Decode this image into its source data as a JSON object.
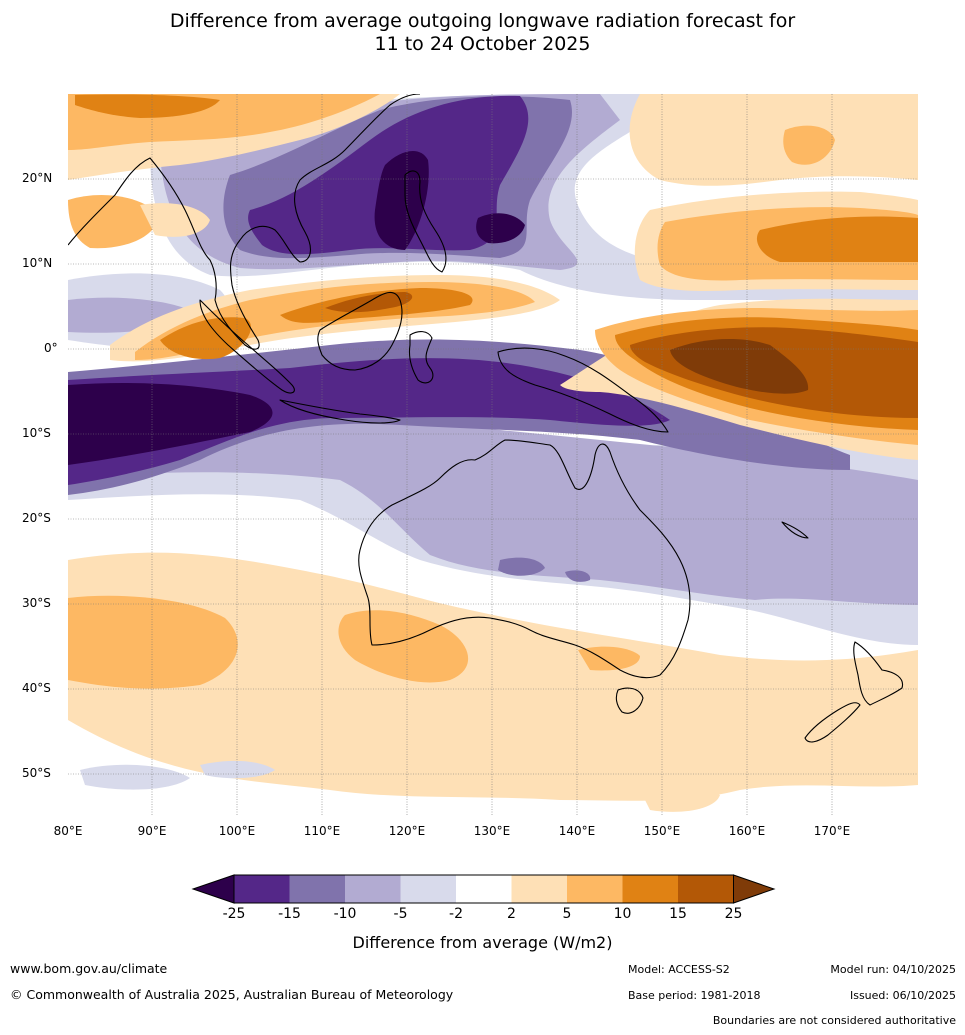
{
  "title": {
    "line1": "Difference from average outgoing longwave radiation forecast for",
    "line2": "11 to 24 October 2025"
  },
  "map": {
    "lat_labels": [
      "20°N",
      "10°N",
      "0°",
      "10°S",
      "20°S",
      "30°S",
      "40°S",
      "50°S"
    ],
    "lon_labels": [
      "80°E",
      "90°E",
      "100°E",
      "110°E",
      "120°E",
      "130°E",
      "140°E",
      "150°E",
      "160°E",
      "170°E"
    ],
    "regions": [
      "asia-mainland",
      "borneo",
      "sumatra",
      "new-guinea",
      "philippines",
      "australia",
      "tasmania",
      "new-zealand-north",
      "new-zealand-south"
    ],
    "colors": {
      "c_lt_neg25": "#2d004b",
      "c_neg25_15": "#542788",
      "c_neg15_10": "#8073ac",
      "c_neg10_5": "#b2abd2",
      "c_neg5_2": "#d8daeb",
      "c_neutral": "#ffffff",
      "c_2_5": "#fee0b6",
      "c_5_10": "#fdb863",
      "c_10_15": "#e08214",
      "c_15_25": "#b35806",
      "c_gt25": "#7f3b08"
    }
  },
  "legend": {
    "title": "Difference from average (W/m2)",
    "ticks": [
      "-25",
      "-15",
      "-10",
      "-5",
      "-2",
      "2",
      "5",
      "10",
      "15",
      "25"
    ],
    "colors": [
      "#542788",
      "#8073ac",
      "#b2abd2",
      "#d8daeb",
      "#ffffff",
      "#fee0b6",
      "#fdb863",
      "#e08214",
      "#b35806"
    ],
    "low_extend_color": "#2d004b",
    "high_extend_color": "#7f3b08"
  },
  "footer": {
    "url": "www.bom.gov.au/climate",
    "copyright": "© Commonwealth of Australia 2025, Australian Bureau of Meteorology",
    "model": "Model: ACCESS-S2",
    "base_period": "Base period: 1981-2018",
    "model_run": "Model run: 04/10/2025",
    "issued": "Issued: 06/10/2025",
    "disclaimer": "Boundaries are not considered authoritative"
  }
}
